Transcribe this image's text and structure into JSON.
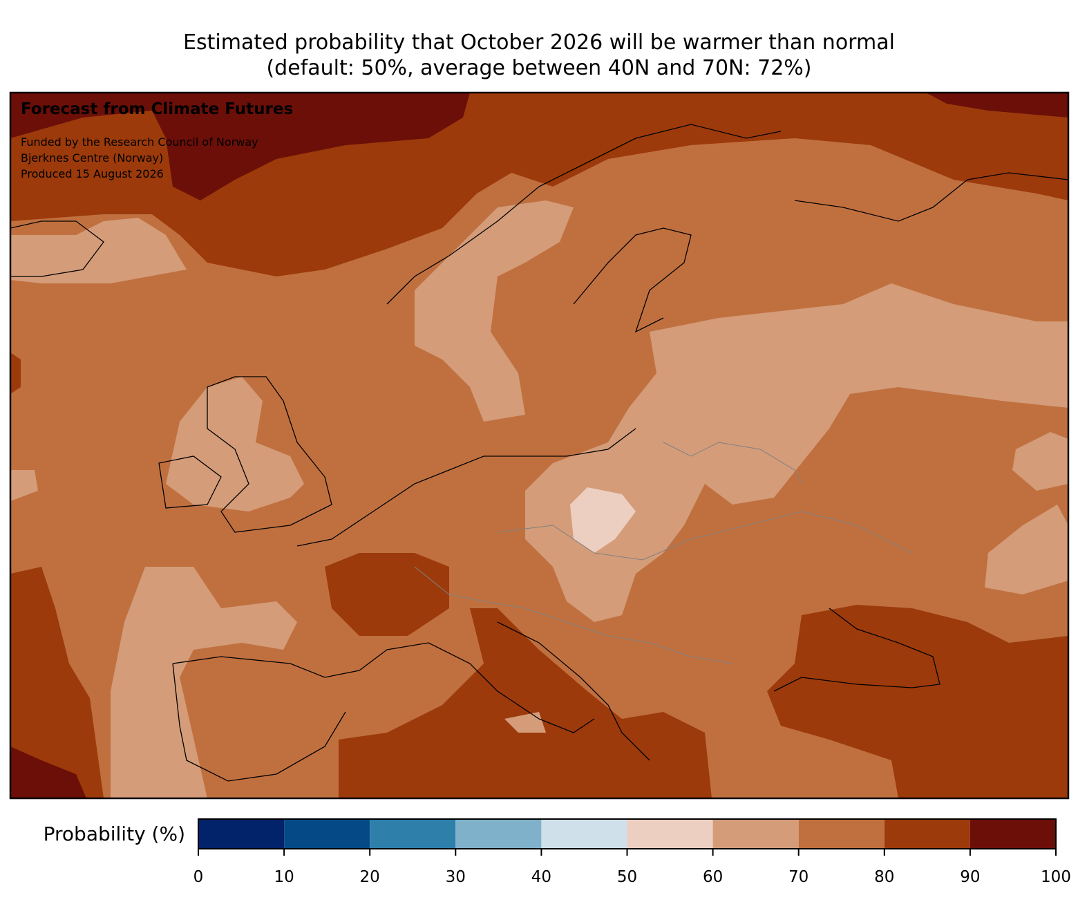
{
  "title": "Estimated probability that October 2026 will be warmer than normal",
  "subtitle": "(default: 50%, average between 40N and 70N: 72%)",
  "annotation": {
    "heading": "Forecast from Climate Futures",
    "lines": [
      "Funded by the Research Council of Norway",
      "Bjerknes Centre (Norway)",
      "Produced 15 August 2026"
    ]
  },
  "colorbar": {
    "label": "Probability (%)",
    "xlim": [
      0,
      100
    ],
    "ticks": [
      0,
      10,
      20,
      30,
      40,
      50,
      60,
      70,
      80,
      90,
      100
    ],
    "colors": [
      "#02226a",
      "#054a87",
      "#2f7fab",
      "#7fb1cb",
      "#cfe0ea",
      "#eccfc1",
      "#d49c79",
      "#c0703f",
      "#9c3a0b",
      "#6b0f08"
    ]
  }
}
